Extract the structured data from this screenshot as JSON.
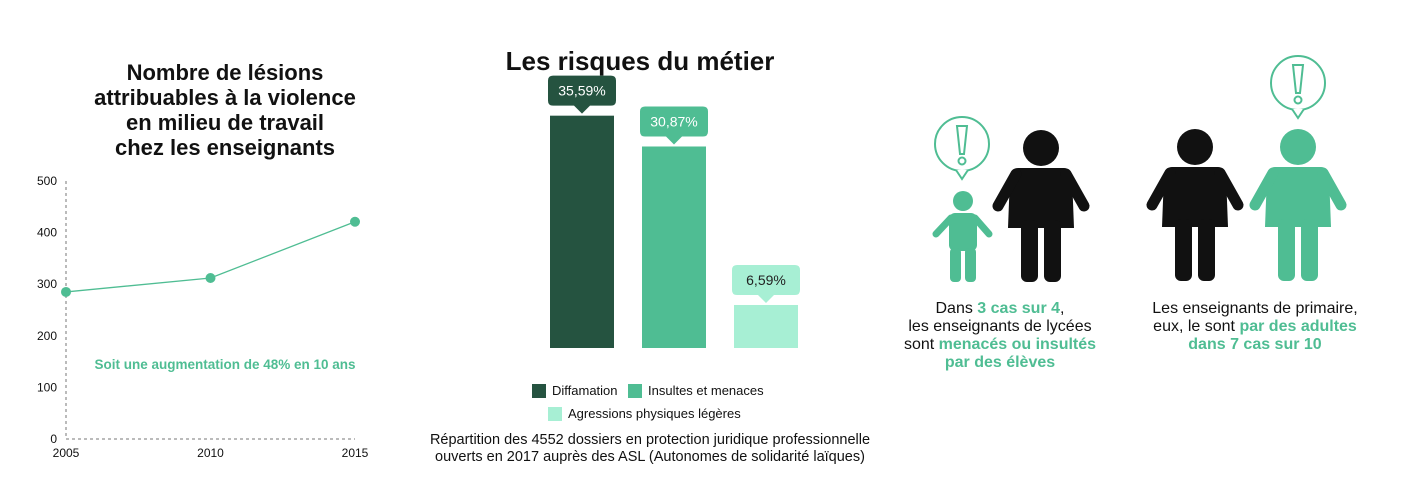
{
  "chart_data": [
    {
      "type": "line",
      "title": "Nombre de lésions attribuables à la violence en milieu de travail chez les enseignants",
      "title_lines": [
        "Nombre de lésions",
        "attribuables à la violence",
        "en milieu de travail",
        "chez les enseignants"
      ],
      "x": [
        2005,
        2010,
        2015
      ],
      "x_tick_labels": [
        "2005",
        "2010",
        "2015"
      ],
      "y_ticks": [
        "0",
        "100",
        "200",
        "300",
        "400",
        "500"
      ],
      "values": [
        285,
        312,
        421
      ],
      "ylim": [
        0,
        500
      ],
      "annotation": "Soit une augmentation de 48% en 10 ans",
      "color": "#4fbd93",
      "grid": false
    },
    {
      "type": "bar",
      "title": "Les risques du métier",
      "categories": [
        "Diffamation",
        "Insultes et menaces",
        "Agressions physiques légères"
      ],
      "values": [
        35.59,
        30.87,
        6.59
      ],
      "data_labels": [
        "35,59%",
        "30,87%",
        "6,59%"
      ],
      "colors": [
        "#255340",
        "#4fbd93",
        "#a7efd4"
      ],
      "label_text_colors": [
        "#ffffff",
        "#ffffff",
        "#222222"
      ],
      "ylim": [
        0,
        36
      ],
      "legend_position": "bottom",
      "caption_lines": [
        "Répartition des 4552 dossiers en protection juridique professionnelle",
        "ouverts en 2017 auprès des ASL (Autonomes de solidarité laïques)"
      ]
    }
  ],
  "colors": {
    "accent": "#4fbd93",
    "dark": "#111111"
  },
  "stats": {
    "left": {
      "icons": [
        "warning-bubble-icon",
        "child-figure-icon",
        "adult-figure-icon"
      ],
      "line1_pre": "Dans ",
      "line1_hl": "3 cas sur 4",
      "line1_post": ",",
      "line2": "les enseignants de lycées",
      "line3_pre": "sont ",
      "line3_hl": "menacés ou insultés",
      "line4_hl": "par des élèves"
    },
    "right": {
      "icons": [
        "adult-figure-icon",
        "warning-bubble-icon",
        "adult-figure-icon"
      ],
      "line1": "Les enseignants de primaire,",
      "line2_pre": "eux, le sont ",
      "line2_hl": "par des adultes",
      "line3_hl": "dans 7 cas sur 10"
    }
  }
}
